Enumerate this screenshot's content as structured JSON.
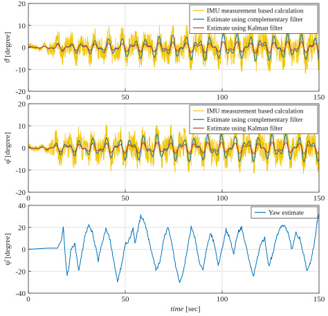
{
  "colors": {
    "imu": "#f5c400",
    "complementary": "#0072bd",
    "kalman": "#c0392b",
    "yaw": "#0072bd",
    "grid": "#e2e2e2",
    "axis": "#333333"
  },
  "xlabel_italic": "time",
  "xlabel_rest": " [sec]",
  "chart_data": [
    {
      "type": "line",
      "ylabel": "ϑ̂ [degree]",
      "xlim": [
        0,
        150
      ],
      "ylim": [
        -20,
        20
      ],
      "xticks": [
        0,
        50,
        100,
        150
      ],
      "yticks": [
        -20,
        -10,
        0,
        10,
        20
      ],
      "grid": true,
      "legend_position": "top-right",
      "series": [
        {
          "name": "IMU measurement based calculation",
          "color_key": "imu",
          "amplitude_profile": [
            [
              0,
              1.5
            ],
            [
              8,
              1.5
            ],
            [
              15,
              6
            ],
            [
              60,
              7
            ],
            [
              100,
              8
            ],
            [
              150,
              9
            ]
          ]
        },
        {
          "name": "Estimate using complementary filter",
          "color_key": "complementary",
          "amplitude_profile": [
            [
              0,
              0.5
            ],
            [
              8,
              0.5
            ],
            [
              15,
              2
            ],
            [
              60,
              5
            ],
            [
              100,
              6
            ],
            [
              150,
              6
            ]
          ]
        },
        {
          "name": "Estimate using Kalman filter",
          "color_key": "kalman",
          "amplitude_profile": [
            [
              0,
              0.5
            ],
            [
              8,
              0.5
            ],
            [
              15,
              1.5
            ],
            [
              60,
              2.5
            ],
            [
              100,
              3
            ],
            [
              150,
              3
            ]
          ]
        }
      ]
    },
    {
      "type": "line",
      "ylabel": "φ̂ [degree]",
      "xlim": [
        0,
        150
      ],
      "ylim": [
        -20,
        20
      ],
      "xticks": [
        0,
        50,
        100,
        150
      ],
      "yticks": [
        -20,
        -10,
        0,
        10,
        20
      ],
      "grid": true,
      "legend_position": "top-right",
      "series": [
        {
          "name": "IMU measurement based calculation",
          "color_key": "imu",
          "amplitude_profile": [
            [
              0,
              1.5
            ],
            [
              8,
              1.5
            ],
            [
              15,
              7
            ],
            [
              60,
              8
            ],
            [
              100,
              8
            ],
            [
              150,
              8
            ]
          ]
        },
        {
          "name": "Estimate using complementary filter",
          "color_key": "complementary",
          "amplitude_profile": [
            [
              0,
              0.5
            ],
            [
              8,
              0.5
            ],
            [
              15,
              3
            ],
            [
              60,
              6
            ],
            [
              100,
              6
            ],
            [
              150,
              6
            ]
          ]
        },
        {
          "name": "Estimate using Kalman filter",
          "color_key": "kalman",
          "amplitude_profile": [
            [
              0,
              0.5
            ],
            [
              8,
              0.5
            ],
            [
              15,
              2
            ],
            [
              60,
              3
            ],
            [
              100,
              3
            ],
            [
              150,
              3
            ]
          ]
        }
      ]
    },
    {
      "type": "line",
      "ylabel": "ψ̂ [degree]",
      "xlim": [
        0,
        150
      ],
      "ylim": [
        -40,
        40
      ],
      "xticks": [
        0,
        50,
        100,
        150
      ],
      "yticks": [
        -40,
        -20,
        0,
        20,
        40
      ],
      "grid": true,
      "legend_position": "top-right",
      "series": [
        {
          "name": "Yaw estimate",
          "color_key": "yaw",
          "points": [
            [
              0,
              0
            ],
            [
              5,
              0.5
            ],
            [
              10,
              1
            ],
            [
              15,
              1
            ],
            [
              17,
              8
            ],
            [
              18,
              20
            ],
            [
              19,
              -5
            ],
            [
              20,
              -25
            ],
            [
              21,
              -15
            ],
            [
              22,
              0
            ],
            [
              24,
              5
            ],
            [
              26,
              -20
            ],
            [
              27,
              -10
            ],
            [
              29,
              10
            ],
            [
              31,
              22
            ],
            [
              33,
              15
            ],
            [
              35,
              0
            ],
            [
              36,
              -10
            ],
            [
              38,
              5
            ],
            [
              40,
              18
            ],
            [
              42,
              10
            ],
            [
              44,
              -10
            ],
            [
              46,
              -30
            ],
            [
              48,
              -15
            ],
            [
              50,
              5
            ],
            [
              52,
              8
            ],
            [
              54,
              20
            ],
            [
              55,
              5
            ],
            [
              57,
              22
            ],
            [
              58,
              30
            ],
            [
              60,
              25
            ],
            [
              62,
              10
            ],
            [
              64,
              -5
            ],
            [
              66,
              -20
            ],
            [
              68,
              -10
            ],
            [
              70,
              10
            ],
            [
              72,
              20
            ],
            [
              74,
              5
            ],
            [
              76,
              -15
            ],
            [
              78,
              -30
            ],
            [
              80,
              -20
            ],
            [
              82,
              0
            ],
            [
              84,
              20
            ],
            [
              86,
              10
            ],
            [
              88,
              -10
            ],
            [
              90,
              -20
            ],
            [
              92,
              0
            ],
            [
              94,
              15
            ],
            [
              96,
              5
            ],
            [
              98,
              -15
            ],
            [
              100,
              0
            ],
            [
              102,
              18
            ],
            [
              104,
              10
            ],
            [
              106,
              -5
            ],
            [
              108,
              15
            ],
            [
              110,
              20
            ],
            [
              112,
              5
            ],
            [
              114,
              -10
            ],
            [
              116,
              -25
            ],
            [
              118,
              -10
            ],
            [
              120,
              5
            ],
            [
              122,
              10
            ],
            [
              124,
              -15
            ],
            [
              126,
              -5
            ],
            [
              128,
              10
            ],
            [
              130,
              20
            ],
            [
              132,
              22
            ],
            [
              134,
              15
            ],
            [
              136,
              0
            ],
            [
              138,
              15
            ],
            [
              140,
              10
            ],
            [
              142,
              -5
            ],
            [
              144,
              -20
            ],
            [
              146,
              -10
            ],
            [
              148,
              10
            ],
            [
              149,
              25
            ],
            [
              150,
              32
            ]
          ]
        }
      ]
    }
  ]
}
